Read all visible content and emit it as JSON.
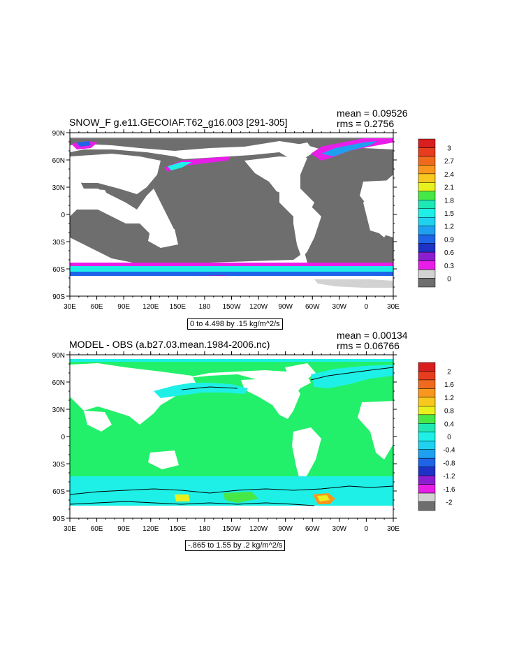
{
  "panels": [
    {
      "title": "SNOW_F g.e11.GECOIAF.T62_g16.003 [291-305]",
      "mean": "mean = 0.09526",
      "rms": "rms = 0.2756",
      "range": "0 to 4.498 by .15 kg/m^2/s",
      "lon_labels": [
        "30E",
        "60E",
        "90E",
        "120E",
        "150E",
        "180",
        "150W",
        "120W",
        "90W",
        "60W",
        "30W",
        "0",
        "30E"
      ],
      "lat_labels": [
        "90N",
        "60N",
        "30N",
        "0",
        "30S",
        "60S",
        "90S"
      ],
      "colorbar_labels": [
        "3",
        "2.7",
        "2.4",
        "2.1",
        "1.8",
        "1.5",
        "1.2",
        "0.9",
        "0.6",
        "0.3",
        "0"
      ],
      "colorbar_colors": [
        "#d81e1e",
        "#e83c1e",
        "#f06a1e",
        "#f8961e",
        "#f8c81e",
        "#e8f01e",
        "#46e846",
        "#1ee8b4",
        "#1ef0e8",
        "#1ed2f0",
        "#1ea0f0",
        "#1e64e8",
        "#1e32c8",
        "#8c1ed2",
        "#e81ee8",
        "#d2d2d2",
        "#6e6e6e"
      ],
      "land_color": "#6e6e6e",
      "ocean_color": "#ffffff"
    },
    {
      "title": "MODEL - OBS (a.b27.03.mean.1984-2006.nc)",
      "mean": "mean = 0.00134",
      "rms": "rms = 0.06766",
      "range": "-.865 to 1.55 by .2 kg/m^2/s",
      "lon_labels": [
        "30E",
        "60E",
        "90E",
        "120E",
        "150E",
        "180",
        "150W",
        "120W",
        "90W",
        "60W",
        "30W",
        "0",
        "30E"
      ],
      "lat_labels": [
        "90N",
        "60N",
        "30N",
        "0",
        "30S",
        "60S",
        "90S"
      ],
      "colorbar_labels": [
        "2",
        "1.6",
        "1.2",
        "0.8",
        "0.4",
        "0",
        "-0.4",
        "-0.8",
        "-1.2",
        "-1.6",
        "-2"
      ],
      "colorbar_colors": [
        "#d81e1e",
        "#e83c1e",
        "#f06a1e",
        "#f8961e",
        "#f8c81e",
        "#e8f01e",
        "#46e846",
        "#1ee8b4",
        "#1ef0e8",
        "#1ed2f0",
        "#1ea0f0",
        "#1e64e8",
        "#1e32c8",
        "#8c1ed2",
        "#e81ee8",
        "#d2d2d2",
        "#6e6e6e"
      ],
      "field_color": "#22f06a",
      "band_color": "#1ef0e8"
    }
  ]
}
